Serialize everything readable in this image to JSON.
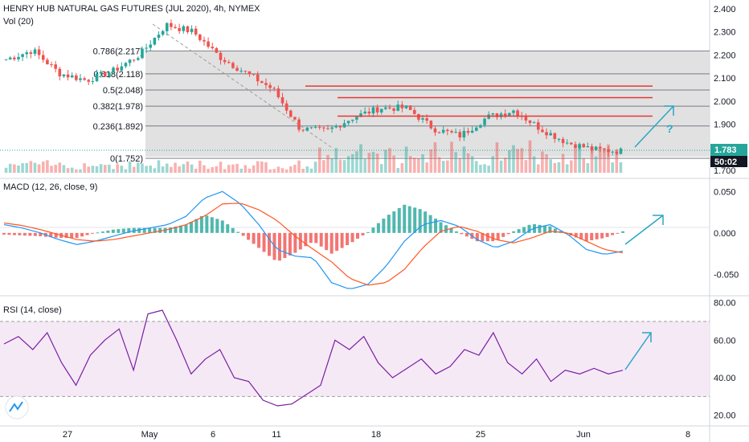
{
  "header": {
    "symbol_title": "HENRY HUB NATURAL GAS FUTURES (JUL 2020), 4h, NYMEX",
    "volume_label": "Vol (20)",
    "macd_label": "MACD (12, 26, close, 9)",
    "rsi_label": "RSI (14, close)"
  },
  "price_badges": {
    "last": "1.783",
    "countdown": "50:02",
    "cut_label": "1.700"
  },
  "annotation": "?",
  "colors": {
    "up": "#26a69a",
    "down": "#ef5350",
    "macd_line": "#2196f3",
    "signal_line": "#ff5722",
    "rsi_line": "#7b1fa2",
    "rsi_band": "#f3e5f5",
    "fib_line": "#131722",
    "res_line": "#e53935",
    "arrow": "#2aa6c4",
    "badge_last": "#26a69a",
    "badge_dark": "#131722"
  },
  "chart_data": [
    {
      "type": "line",
      "panel": "price",
      "title": "HENRY HUB NATURAL GAS FUTURES (JUL 2020), 4h, NYMEX",
      "ylim": [
        1.7,
        2.42
      ],
      "y_ticks": [
        "1.700",
        "1.800",
        "1.900",
        "2.000",
        "2.100",
        "2.200",
        "2.300",
        "2.400"
      ],
      "x_ticks": [
        "27",
        "May",
        "6",
        "11",
        "18",
        "25",
        "Jun",
        "8"
      ],
      "series": [
        {
          "x": [
            "2020-04-22",
            "2020-04-24",
            "2020-04-27",
            "2020-04-29",
            "2020-05-01",
            "2020-05-04",
            "2020-05-05",
            "2020-05-06",
            "2020-05-08",
            "2020-05-11",
            "2020-05-13",
            "2020-05-14",
            "2020-05-15",
            "2020-05-18",
            "2020-05-19",
            "2020-05-21",
            "2020-05-22",
            "2020-05-25",
            "2020-05-27",
            "2020-05-28",
            "2020-05-29",
            "2020-06-01",
            "2020-06-03",
            "2020-06-04"
          ],
          "values": [
            2.18,
            2.22,
            2.12,
            2.09,
            2.13,
            2.2,
            2.33,
            2.3,
            2.19,
            2.12,
            2.05,
            1.88,
            1.87,
            1.93,
            1.97,
            1.97,
            1.88,
            1.85,
            1.93,
            1.96,
            1.88,
            1.82,
            1.79,
            1.783
          ]
        }
      ],
      "fibonacci_levels": [
        {
          "label": "0(1.752)",
          "value": 1.752
        },
        {
          "label": "0.236(1.892)",
          "value": 1.892
        },
        {
          "label": "0.382(1.978)",
          "value": 1.978
        },
        {
          "label": "0.5(2.048)",
          "value": 2.048
        },
        {
          "label": "0.618(2.118)",
          "value": 2.118
        },
        {
          "label": "0.786(2.217)",
          "value": 2.217
        }
      ],
      "resistance_lines": [
        2.065,
        2.015,
        1.935
      ]
    },
    {
      "type": "bar",
      "panel": "volume",
      "title": "Vol (20)"
    },
    {
      "type": "line",
      "panel": "macd",
      "title": "MACD (12, 26, close, 9)",
      "ylim": [
        -0.07,
        0.06
      ],
      "y_ticks": [
        "0.050",
        "0.000",
        "-0.050"
      ],
      "series": [
        {
          "name": "MACD",
          "values": [
            0.01,
            0.006,
            0.0,
            -0.008,
            -0.014,
            -0.01,
            -0.004,
            0.002,
            0.006,
            0.01,
            0.02,
            0.042,
            0.05,
            0.035,
            0.01,
            -0.02,
            -0.028,
            -0.03,
            -0.06,
            -0.068,
            -0.062,
            -0.04,
            -0.01,
            0.01,
            0.015,
            0.008,
            -0.008,
            -0.018,
            -0.01,
            0.005,
            0.01,
            -0.002,
            -0.02,
            -0.026,
            -0.022
          ]
        },
        {
          "name": "Signal",
          "values": [
            0.012,
            0.009,
            0.004,
            -0.002,
            -0.008,
            -0.01,
            -0.008,
            -0.004,
            0.0,
            0.004,
            0.01,
            0.02,
            0.035,
            0.036,
            0.028,
            0.015,
            -0.004,
            -0.02,
            -0.035,
            -0.055,
            -0.063,
            -0.06,
            -0.044,
            -0.018,
            0.002,
            0.008,
            0.002,
            -0.008,
            -0.012,
            -0.006,
            0.002,
            0.0,
            -0.01,
            -0.02,
            -0.024
          ]
        }
      ]
    },
    {
      "type": "line",
      "panel": "rsi",
      "title": "RSI (14, close)",
      "ylim": [
        16,
        82
      ],
      "y_ticks": [
        "80.00",
        "60.00",
        "40.00",
        "20.00"
      ],
      "band": [
        30,
        70
      ],
      "series": [
        {
          "name": "RSI",
          "values": [
            58,
            62,
            55,
            64,
            48,
            36,
            52,
            60,
            66,
            44,
            74,
            76,
            60,
            42,
            50,
            55,
            40,
            38,
            28,
            25,
            26,
            31,
            36,
            60,
            55,
            62,
            48,
            40,
            45,
            50,
            42,
            46,
            55,
            52,
            64,
            48,
            42,
            50,
            38,
            44,
            42,
            45,
            42,
            44
          ]
        }
      ]
    }
  ]
}
